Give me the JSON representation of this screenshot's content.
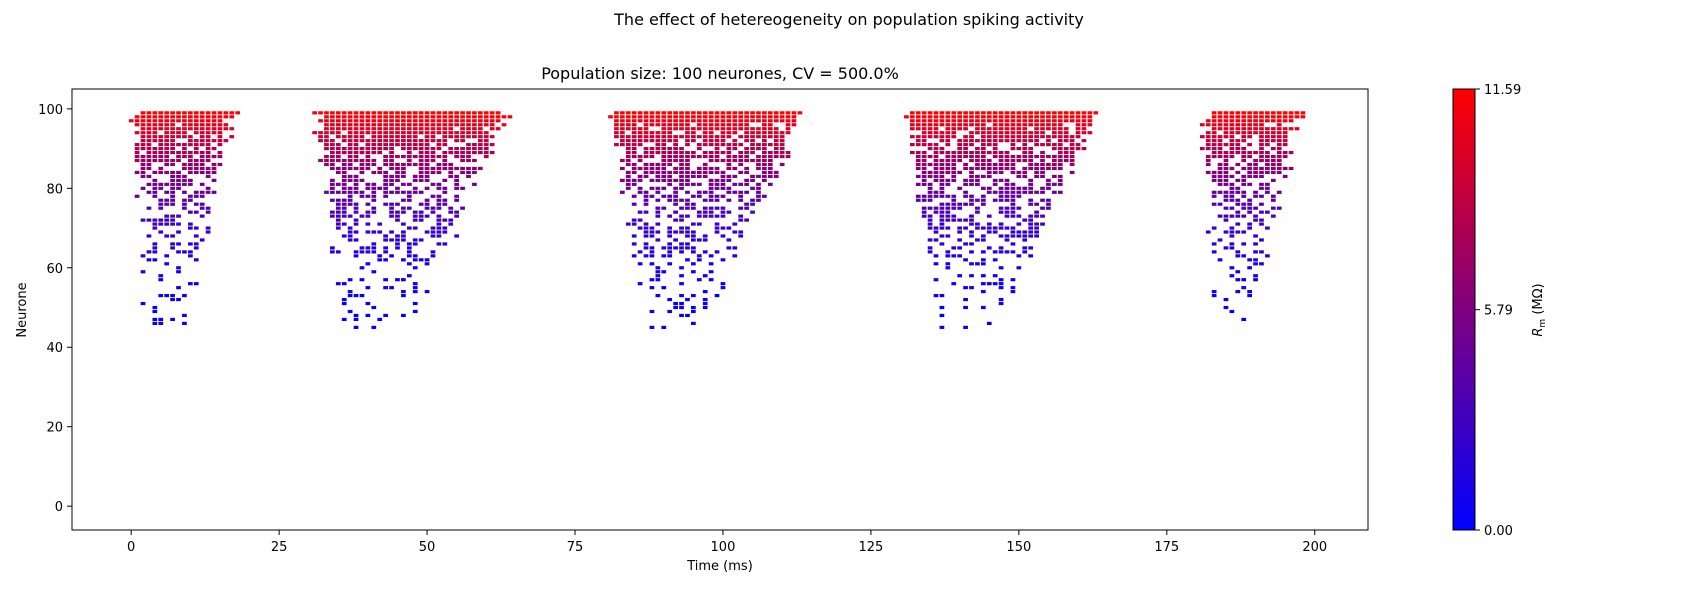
{
  "figure": {
    "suptitle": "The effect of hetereogeneity on population spiking activity"
  },
  "chart_data": {
    "type": "scatter",
    "title": "Population size: 100 neurones, CV = 500.0%",
    "xlabel": "Time (ms)",
    "ylabel": "Neurone",
    "xlim": [
      -10,
      209
    ],
    "ylim": [
      -6,
      105
    ],
    "xticks": [
      0,
      25,
      50,
      75,
      100,
      125,
      150,
      175,
      200
    ],
    "yticks": [
      0,
      20,
      40,
      60,
      80,
      100
    ],
    "grid": false,
    "marker": "square",
    "bursts": [
      {
        "start": 0,
        "end": 20.5,
        "lowest_neurone": 46
      },
      {
        "start": 31,
        "end": 70.5,
        "lowest_neurone": 45
      },
      {
        "start": 81,
        "end": 120.5,
        "lowest_neurone": 45
      },
      {
        "start": 131,
        "end": 170.5,
        "lowest_neurone": 45
      },
      {
        "start": 181,
        "end": 200,
        "lowest_neurone": 46
      }
    ],
    "colorbar": {
      "label": "R_m (MΩ)",
      "label_main": "R",
      "label_sub": "m",
      "label_unit": " (MΩ)",
      "min": 0.0,
      "max": 11.59,
      "ticks": [
        "0.00",
        "5.79",
        "11.59"
      ],
      "colors": [
        "#0000ff",
        "#ff0000"
      ]
    }
  }
}
